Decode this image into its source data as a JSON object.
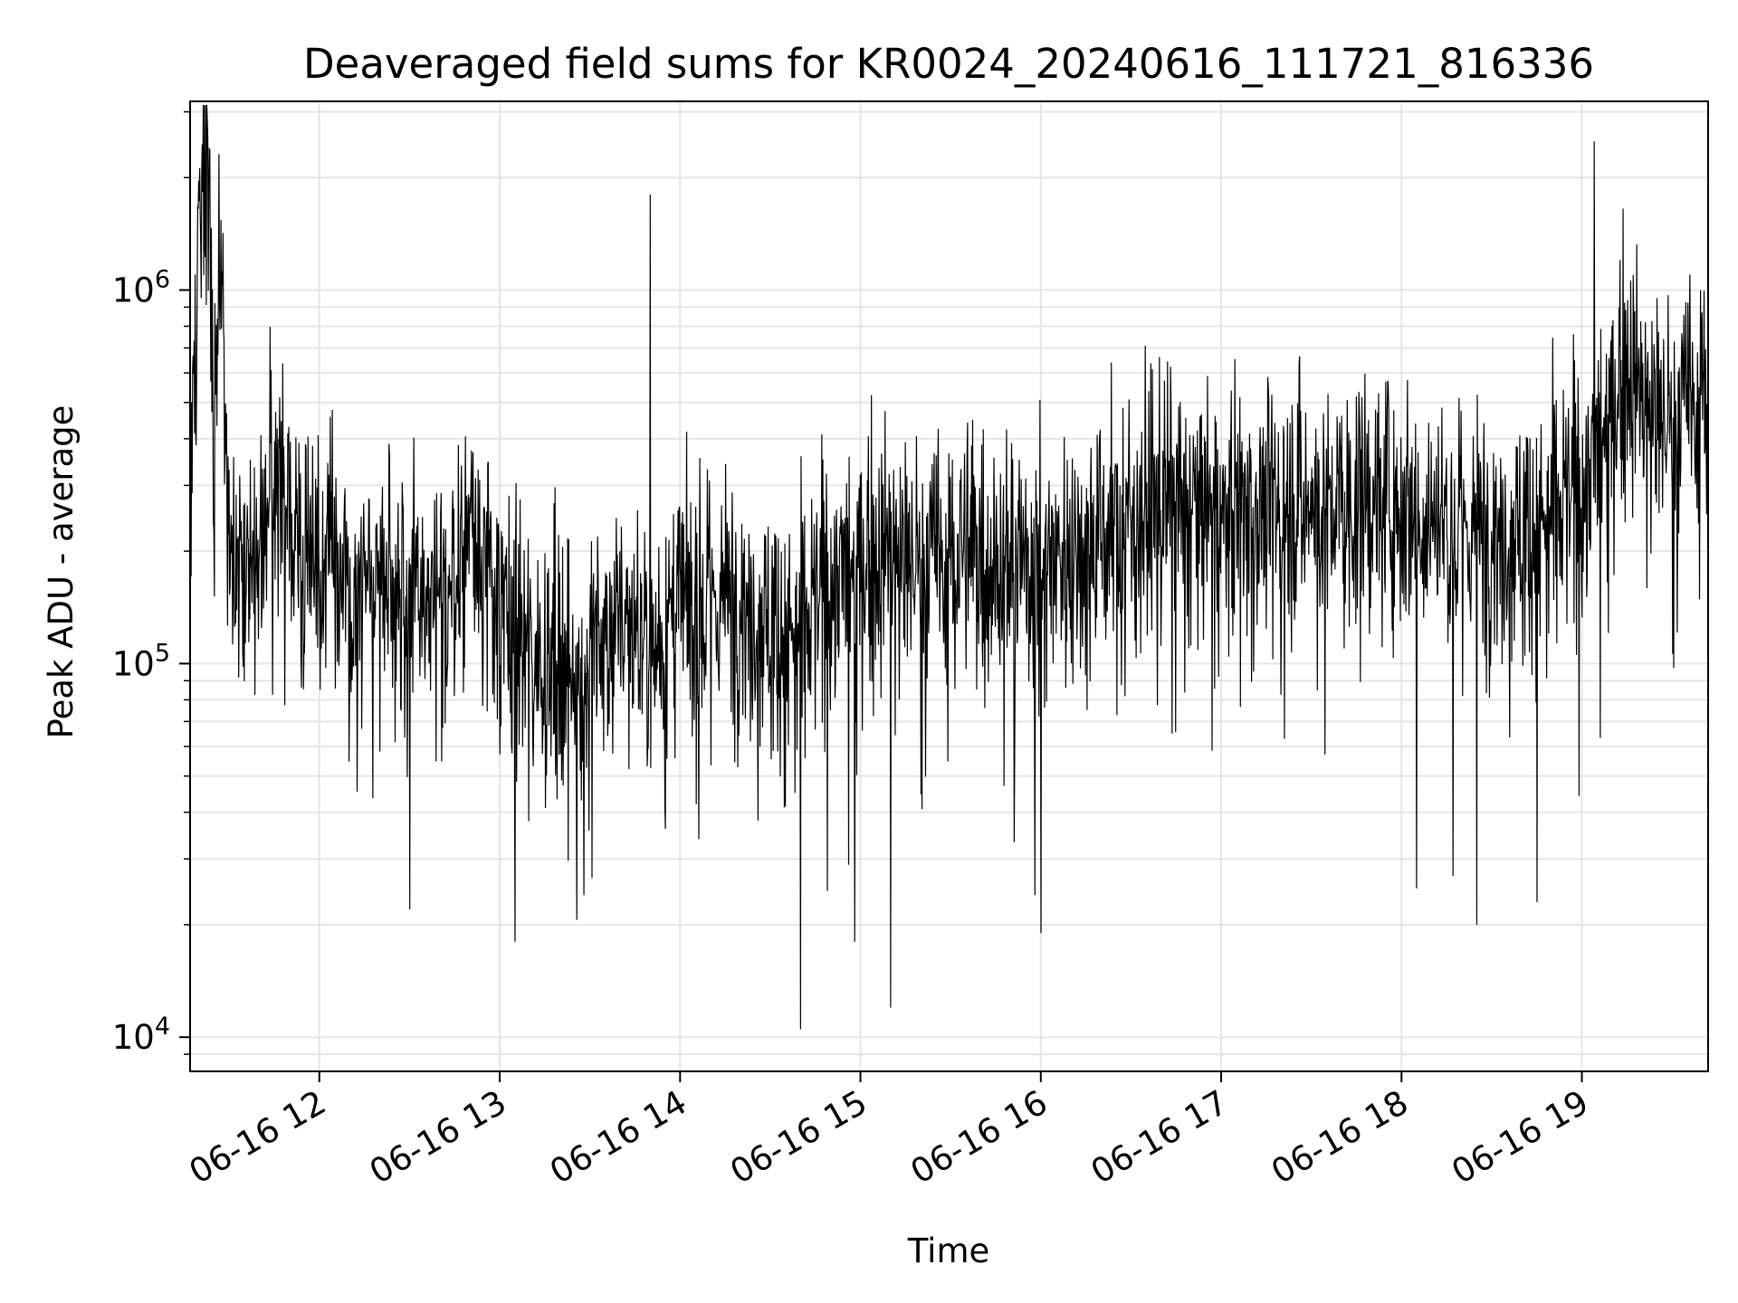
{
  "chart_data": {
    "type": "line",
    "title": "Deaveraged field sums for KR0024_20240616_111721_816336",
    "xlabel": "Time",
    "ylabel": "Peak ADU - average",
    "y_scale": "log",
    "ylim": [
      8100,
      3200000
    ],
    "xlim": [
      "2024-06-16 11:17",
      "2024-06-16 19:42"
    ],
    "grid": true,
    "grid_minor_y": true,
    "line_color": "#000000",
    "grid_color": "#e5e5e5",
    "x_ticks": [
      {
        "value": "2024-06-16 12:00",
        "label": "06-16 12"
      },
      {
        "value": "2024-06-16 13:00",
        "label": "06-16 13"
      },
      {
        "value": "2024-06-16 14:00",
        "label": "06-16 14"
      },
      {
        "value": "2024-06-16 15:00",
        "label": "06-16 15"
      },
      {
        "value": "2024-06-16 16:00",
        "label": "06-16 16"
      },
      {
        "value": "2024-06-16 17:00",
        "label": "06-16 17"
      },
      {
        "value": "2024-06-16 18:00",
        "label": "06-16 18"
      },
      {
        "value": "2024-06-16 19:00",
        "label": "06-16 19"
      }
    ],
    "y_ticks": [
      {
        "value": 10000,
        "base": "10",
        "exp": "4"
      },
      {
        "value": 100000,
        "base": "10",
        "exp": "5"
      },
      {
        "value": 1000000,
        "base": "10",
        "exp": "6"
      }
    ],
    "series": [
      {
        "x": [
          "2024-06-16 11:17",
          "2024-06-16 11:20",
          "2024-06-16 11:23",
          "2024-06-16 11:25",
          "2024-06-16 11:27",
          "2024-06-16 11:30",
          "2024-06-16 11:35",
          "2024-06-16 11:40",
          "2024-06-16 11:45",
          "2024-06-16 11:50",
          "2024-06-16 11:55",
          "2024-06-16 12:00",
          "2024-06-16 12:10",
          "2024-06-16 12:20",
          "2024-06-16 12:30",
          "2024-06-16 12:40",
          "2024-06-16 12:50",
          "2024-06-16 13:00",
          "2024-06-16 13:10",
          "2024-06-16 13:20",
          "2024-06-16 13:30",
          "2024-06-16 13:40",
          "2024-06-16 13:50",
          "2024-06-16 14:00",
          "2024-06-16 14:10",
          "2024-06-16 14:20",
          "2024-06-16 14:30",
          "2024-06-16 14:40",
          "2024-06-16 14:50",
          "2024-06-16 15:00",
          "2024-06-16 15:10",
          "2024-06-16 15:20",
          "2024-06-16 15:30",
          "2024-06-16 15:40",
          "2024-06-16 15:50",
          "2024-06-16 16:00",
          "2024-06-16 16:10",
          "2024-06-16 16:20",
          "2024-06-16 16:30",
          "2024-06-16 16:40",
          "2024-06-16 16:50",
          "2024-06-16 17:00",
          "2024-06-16 17:10",
          "2024-06-16 17:20",
          "2024-06-16 17:30",
          "2024-06-16 17:40",
          "2024-06-16 17:50",
          "2024-06-16 18:00",
          "2024-06-16 18:10",
          "2024-06-16 18:20",
          "2024-06-16 18:30",
          "2024-06-16 18:40",
          "2024-06-16 18:50",
          "2024-06-16 19:00",
          "2024-06-16 19:10",
          "2024-06-16 19:15",
          "2024-06-16 19:20",
          "2024-06-16 19:30",
          "2024-06-16 19:40",
          "2024-06-16 19:42"
        ],
        "values": [
          250000,
          1700000,
          2100000,
          350000,
          1500000,
          200000,
          180000,
          220000,
          300000,
          250000,
          200000,
          210000,
          150000,
          180000,
          160000,
          120000,
          250000,
          140000,
          110000,
          100000,
          100000,
          140000,
          110000,
          140000,
          150000,
          150000,
          130000,
          120000,
          170000,
          180000,
          200000,
          190000,
          200000,
          200000,
          180000,
          190000,
          200000,
          230000,
          240000,
          270000,
          260000,
          260000,
          260000,
          270000,
          270000,
          260000,
          270000,
          270000,
          250000,
          230000,
          230000,
          230000,
          250000,
          300000,
          450000,
          650000,
          500000,
          450000,
          550000,
          600000
        ],
        "spikes": [
          {
            "x": "2024-06-16 13:50",
            "value": 1800000
          },
          {
            "x": "2024-06-16 19:04",
            "value": 2500000
          },
          {
            "x": "2024-06-16 14:40",
            "value": 10500
          },
          {
            "x": "2024-06-16 15:10",
            "value": 12000
          },
          {
            "x": "2024-06-16 13:05",
            "value": 18000
          },
          {
            "x": "2024-06-16 14:58",
            "value": 18000
          },
          {
            "x": "2024-06-16 16:00",
            "value": 19000
          },
          {
            "x": "2024-06-16 18:25",
            "value": 20000
          },
          {
            "x": "2024-06-16 12:30",
            "value": 22000
          },
          {
            "x": "2024-06-16 18:45",
            "value": 23000
          },
          {
            "x": "2024-06-16 15:58",
            "value": 24000
          },
          {
            "x": "2024-06-16 13:28",
            "value": 24000
          },
          {
            "x": "2024-06-16 18:05",
            "value": 25000
          },
          {
            "x": "2024-06-16 18:17",
            "value": 27000
          }
        ]
      }
    ]
  }
}
